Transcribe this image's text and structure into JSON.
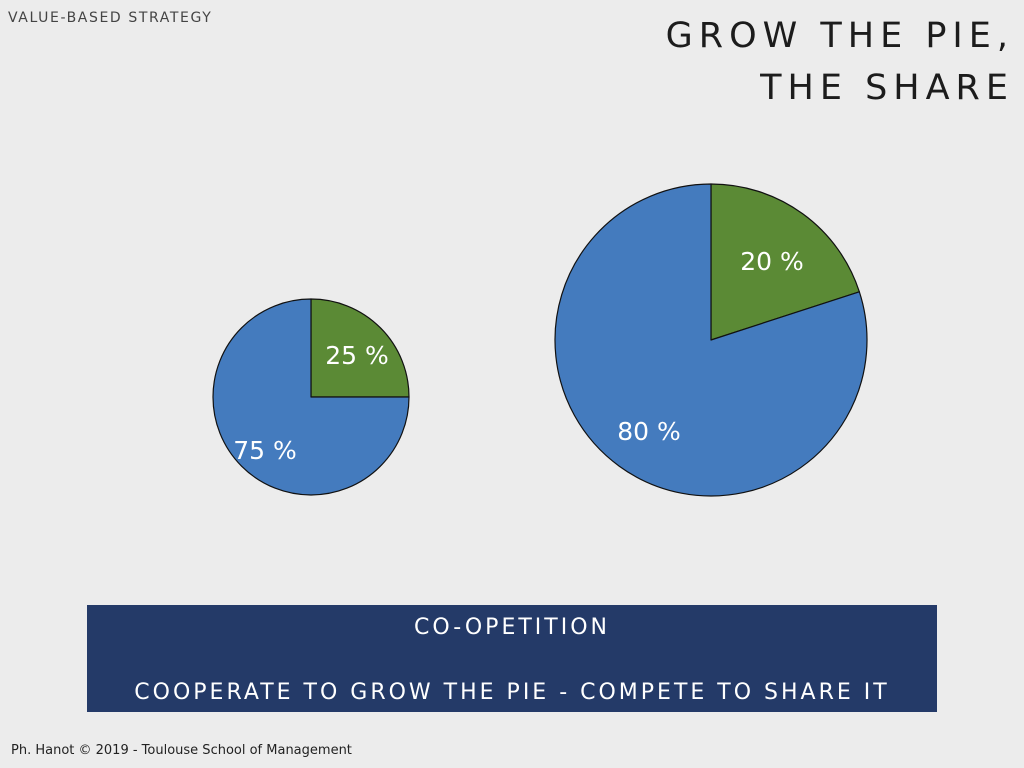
{
  "header": {
    "section_label": "VALUE-BASED STRATEGY",
    "title_line1": "GROW THE PIE,",
    "title_line2": "THE SHARE"
  },
  "chart_data": [
    {
      "type": "pie",
      "title": "",
      "slices": [
        {
          "label": "25 %",
          "value": 25,
          "color": "#5b8a35"
        },
        {
          "label": "75 %",
          "value": 75,
          "color": "#447bbe"
        }
      ]
    },
    {
      "type": "pie",
      "title": "",
      "slices": [
        {
          "label": "20 %",
          "value": 20,
          "color": "#5b8a35"
        },
        {
          "label": "80 %",
          "value": 80,
          "color": "#447bbe"
        }
      ]
    }
  ],
  "banner": {
    "title": "CO-OPETITION",
    "subtitle": "COOPERATE TO GROW THE PIE - COMPETE TO SHARE IT"
  },
  "footer": {
    "text": "Ph. Hanot © 2019  -  Toulouse School of Management"
  }
}
